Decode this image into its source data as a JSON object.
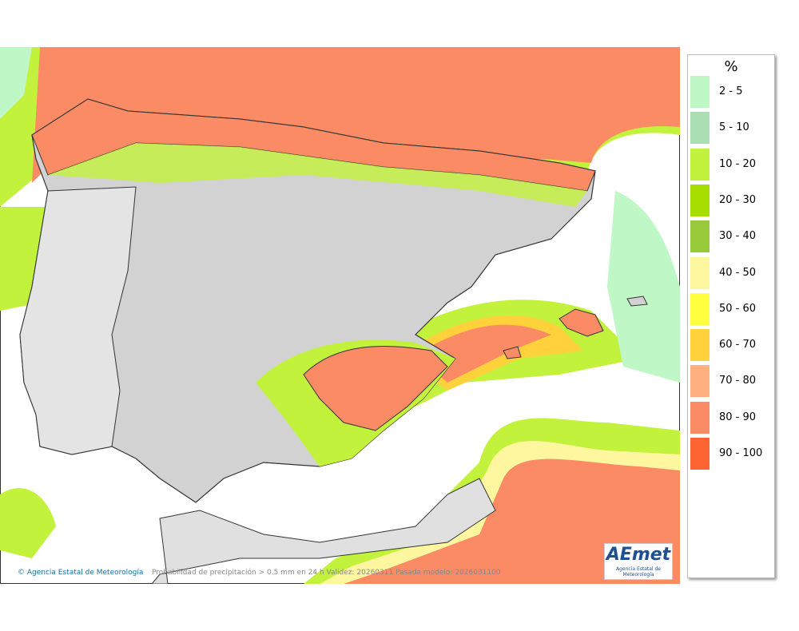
{
  "legend": {
    "title": "%",
    "items": [
      {
        "label": "2 - 5",
        "color": "#bff7c6"
      },
      {
        "label": "5 - 10",
        "color": "#a9dfb3"
      },
      {
        "label": "10 - 20",
        "color": "#c3f23c"
      },
      {
        "label": "20 - 30",
        "color": "#a8dd00"
      },
      {
        "label": "30 - 40",
        "color": "#98c93a"
      },
      {
        "label": "40 - 50",
        "color": "#fff7a0"
      },
      {
        "label": "50 - 60",
        "color": "#ffff40"
      },
      {
        "label": "60 - 70",
        "color": "#ffd23c"
      },
      {
        "label": "70 - 80",
        "color": "#ffb07e"
      },
      {
        "label": "80 - 90",
        "color": "#fa8b64"
      },
      {
        "label": "90 - 100",
        "color": "#ff6432"
      }
    ]
  },
  "footer": {
    "agency": "Agencia Estatal de Meteorología",
    "caption": "Probabilidad de precipitación > 0.5 mm en 24 h Validez: 20260311 Pasada modelo: 2026031100"
  },
  "logo": {
    "name": "AEmet",
    "subtitle": "Agencia Estatal de Meteorología"
  }
}
